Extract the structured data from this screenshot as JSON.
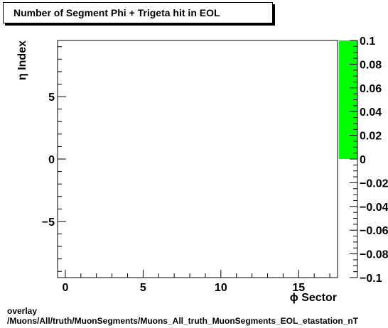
{
  "chart_data": {
    "type": "heatmap",
    "title": "Number of Segment Phi + Trigeta hit in EOL",
    "xlabel": "ϕ Sector",
    "ylabel": "η Index",
    "xlim": [
      -0.5,
      17.5
    ],
    "ylim": [
      -9.5,
      9.5
    ],
    "x_ticks": [
      0,
      5,
      10,
      15
    ],
    "y_ticks": [
      -5,
      0,
      5
    ],
    "zlim": [
      -0.1,
      0.1
    ],
    "colorbar_ticks": [
      -0.1,
      -0.08,
      -0.06,
      -0.04,
      -0.02,
      0,
      0.02,
      0.04,
      0.06,
      0.08,
      0.1
    ],
    "colorbar_fill_range": [
      0,
      0.1
    ],
    "colorbar_fill_color": "#00ff00",
    "cells": []
  },
  "footer": {
    "line1": "overlay",
    "line2": "/Muons/All/truth/MuonSegments/Muons_All_truth_MuonSegments_EOL_etastation_nT"
  }
}
